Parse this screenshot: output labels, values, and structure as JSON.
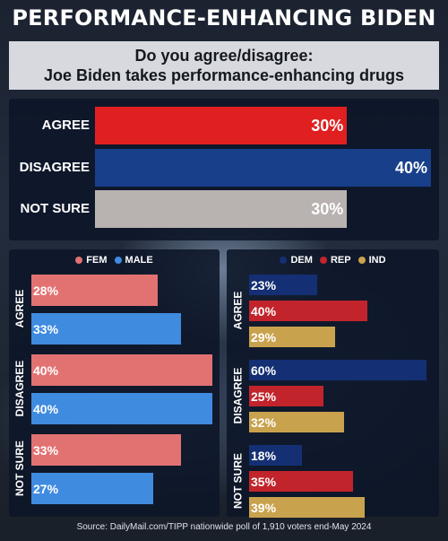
{
  "header": {
    "title": "PERFORMANCE-ENHANCING BIDEN"
  },
  "question": {
    "line1": "Do you agree/disagree:",
    "line2": "Joe Biden takes performance-enhancing drugs"
  },
  "colors": {
    "agree": "#e02020",
    "disagree": "#173f8a",
    "not_sure": "#b8b2b0",
    "fem": "#e27272",
    "male": "#3f8be0",
    "dem": "#142f73",
    "rep": "#c2242b",
    "ind": "#c9a24e"
  },
  "chart_data": [
    {
      "type": "bar",
      "orientation": "horizontal",
      "categories": [
        "AGREE",
        "DISAGREE",
        "NOT SURE"
      ],
      "values": [
        30,
        40,
        30
      ],
      "value_labels": [
        "30%",
        "40%",
        "30%"
      ],
      "xlim": [
        0,
        40
      ]
    },
    {
      "type": "bar",
      "orientation": "horizontal",
      "legend": "top-center",
      "categories": [
        "AGREE",
        "DISAGREE",
        "NOT SURE"
      ],
      "series": [
        {
          "name": "FEM",
          "values": [
            28,
            40,
            33
          ],
          "labels": [
            "28%",
            "40%",
            "33%"
          ]
        },
        {
          "name": "MALE",
          "values": [
            33,
            40,
            27
          ],
          "labels": [
            "33%",
            "40%",
            "27%"
          ]
        }
      ],
      "xlim": [
        0,
        40
      ]
    },
    {
      "type": "bar",
      "orientation": "horizontal",
      "legend": "top-center",
      "categories": [
        "AGREE",
        "DISAGREE",
        "NOT SURE"
      ],
      "series": [
        {
          "name": "DEM",
          "values": [
            23,
            60,
            18
          ],
          "labels": [
            "23%",
            "60%",
            "18%"
          ]
        },
        {
          "name": "REP",
          "values": [
            40,
            25,
            35
          ],
          "labels": [
            "40%",
            "25%",
            "35%"
          ]
        },
        {
          "name": "IND",
          "values": [
            29,
            32,
            39
          ],
          "labels": [
            "29%",
            "32%",
            "39%"
          ]
        }
      ],
      "xlim": [
        0,
        60
      ]
    }
  ],
  "source": "Source: DailyMail.com/TIPP nationwide poll of 1,910 voters end-May 2024"
}
